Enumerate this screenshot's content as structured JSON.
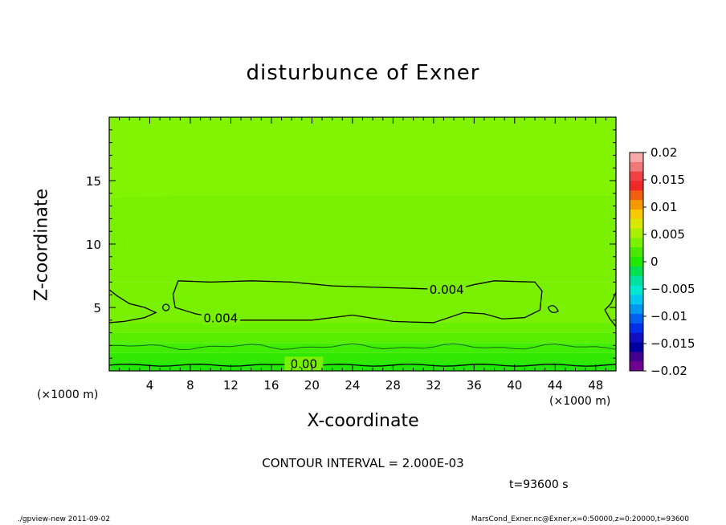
{
  "chart_data": {
    "type": "heatmap",
    "title": "disturbunce of Exner",
    "xlabel": "X-coordinate",
    "ylabel": "Z-coordinate",
    "x_unit": "(×1000 m)",
    "y_unit": "(×1000 m)",
    "xlim": [
      0,
      50
    ],
    "ylim": [
      0,
      20
    ],
    "x_ticks": [
      4,
      8,
      12,
      16,
      20,
      24,
      28,
      32,
      36,
      40,
      44,
      48
    ],
    "y_ticks": [
      5,
      10,
      15
    ],
    "colorbar": {
      "range": [
        -0.02,
        0.02
      ],
      "ticks": [
        0.02,
        0.015,
        0.01,
        0.005,
        0,
        -0.005,
        -0.01,
        -0.015,
        -0.02
      ],
      "tick_labels": [
        "0.02",
        "0.015",
        "0.01",
        "0.005",
        "0",
        "−0.005",
        "−0.01",
        "−0.015",
        "−0.02"
      ],
      "colors": [
        "#f8a8a8",
        "#f07878",
        "#f04040",
        "#f02828",
        "#f06010",
        "#f89800",
        "#f8c800",
        "#d8e800",
        "#a8f000",
        "#78f000",
        "#48e800",
        "#20e800",
        "#00e050",
        "#00e0a0",
        "#00e8d0",
        "#00c8f0",
        "#0098f0",
        "#0060f0",
        "#0030e8",
        "#1010c0",
        "#0000a0",
        "#400090",
        "#700090"
      ]
    },
    "field_bands": [
      {
        "z_from": 0,
        "z_to": 0.6,
        "color": "#20e800"
      },
      {
        "z_from": 0.6,
        "z_to": 1.4,
        "color": "#30e800"
      },
      {
        "z_from": 1.4,
        "z_to": 2.2,
        "color": "#40ec00"
      },
      {
        "z_from": 2.2,
        "z_to": 3.0,
        "color": "#58ee00"
      },
      {
        "z_from": 3.0,
        "z_to": 3.8,
        "color": "#68f000"
      },
      {
        "z_from": 3.8,
        "z_to": 7.0,
        "color": "#78f000"
      },
      {
        "z_from": 7.0,
        "z_to": 13.8,
        "color": "#78f000"
      },
      {
        "z_from": 13.8,
        "z_to": 20,
        "color": "#80f400"
      }
    ],
    "contour_labels": [
      "0.004",
      "0.004",
      "0.00"
    ]
  },
  "text": {
    "contour_interval": "CONTOUR INTERVAL = 2.000E-03",
    "time": "t=93600 s",
    "footer_left": "./gpview-new   2011-09-02",
    "footer_right": "MarsCond_Exner.nc@Exner,x=0:50000,z=0:20000,t=93600"
  }
}
